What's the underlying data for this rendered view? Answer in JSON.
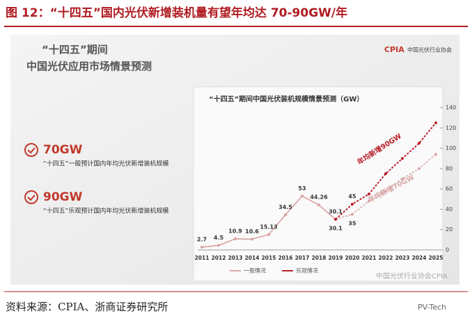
{
  "header": {
    "title": "图 12：“十四五”国内光伏新增装机量有望年均达 70-90GW/年"
  },
  "slide": {
    "heading": "“十四五”期间",
    "subheading": "中国光伏应用市场情景预测",
    "logo": "CPIA",
    "logo_caption": "中国光伏行业协会",
    "points": [
      {
        "value": "70GW",
        "text": "“十四五”一般预计国内年均光伏新增装机规模"
      },
      {
        "value": "90GW",
        "text": "“十四五”乐观预计国内年均光伏新增装机规模"
      }
    ],
    "watermark": "中国光伏行业协会CPIA"
  },
  "chart_data": {
    "type": "line",
    "title": "“十四五”期间中国光伏装机规模情景预测（GW）",
    "categories": [
      "2011",
      "2012",
      "2013",
      "2014",
      "2015",
      "2016",
      "2017",
      "2018",
      "2019",
      "2020",
      "2021",
      "2022",
      "2023",
      "2024",
      "2025"
    ],
    "series": [
      {
        "color": "#d9a0a0",
        "values": [
          2.7,
          4.5,
          10.9,
          10.6,
          15.13,
          34.5,
          53,
          44.26,
          30.1,
          null,
          null,
          null,
          null,
          null,
          null
        ],
        "value_labels": [
          "2.7",
          "4.5",
          "10.9",
          "10.6",
          "15.13",
          "34.5",
          "53",
          "44.26",
          "30.1",
          null,
          null,
          null,
          null,
          null,
          null
        ]
      },
      {
        "name": "一般情况",
        "color": "#d8a8a8",
        "values": [
          null,
          null,
          null,
          null,
          null,
          null,
          null,
          null,
          30.1,
          35,
          48,
          58,
          70,
          80,
          94
        ],
        "value_labels": [
          null,
          null,
          null,
          null,
          null,
          null,
          null,
          null,
          "30.1",
          "35",
          null,
          null,
          null,
          null,
          null
        ]
      },
      {
        "name": "乐观情况",
        "color": "#b8202a",
        "values": [
          null,
          null,
          null,
          null,
          null,
          null,
          null,
          null,
          30.1,
          45,
          55,
          75,
          90,
          105,
          125
        ],
        "value_labels": [
          null,
          null,
          null,
          null,
          null,
          null,
          null,
          null,
          null,
          "45",
          null,
          null,
          null,
          null,
          null
        ]
      }
    ],
    "annotations": [
      "年均新增90GW",
      "年均新增70GW"
    ],
    "ylim": [
      0,
      140
    ],
    "yticks": [
      0,
      20,
      40,
      60,
      80,
      100,
      120,
      140
    ]
  },
  "footer": {
    "source": "资料来源：CPIA、浙商证券研究所",
    "brand": "PV-Tech"
  }
}
